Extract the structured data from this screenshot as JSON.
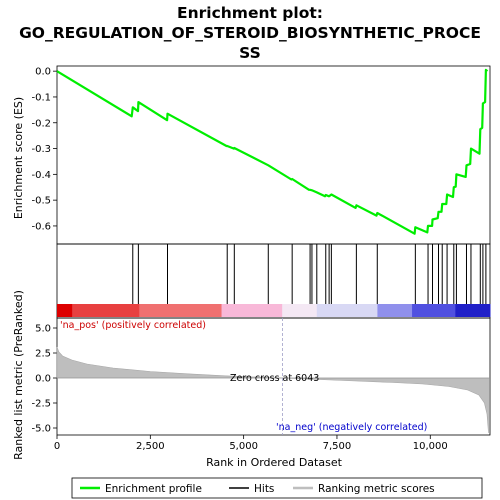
{
  "title_line1": "Enrichment plot:",
  "title_line2": "GO_REGULATION_OF_STEROID_BIOSYNTHETIC_PROCE",
  "title_line3": "SS",
  "colors": {
    "es_line": "#00ee00",
    "hits": "#000000",
    "metric_fill": "#bebebe",
    "pos_text": "#cc0000",
    "neg_text": "#0000cc",
    "zero_cross_line": "#a0a0c8"
  },
  "chart_data": {
    "type": "line",
    "x_axis": {
      "label": "Rank in Ordered Dataset",
      "min": 0,
      "max": 11600,
      "ticks": [
        0,
        2500,
        5000,
        7500,
        10000
      ],
      "tick_labels": [
        "0",
        "2,500",
        "5,000",
        "7,500",
        "10,000"
      ]
    },
    "es_panel": {
      "ylabel": "Enrichment score (ES)",
      "ylim": [
        -0.67,
        0.02
      ],
      "yticks": [
        0.0,
        -0.1,
        -0.2,
        -0.3,
        -0.4,
        -0.5,
        -0.6
      ],
      "ytick_labels": [
        "0.0",
        "-0.1",
        "-0.2",
        "-0.3",
        "-0.4",
        "-0.5",
        "-0.6"
      ],
      "series_name": "Enrichment profile",
      "points": [
        [
          0,
          0.0
        ],
        [
          2000,
          -0.175
        ],
        [
          2030,
          -0.14
        ],
        [
          2170,
          -0.155
        ],
        [
          2180,
          -0.12
        ],
        [
          2950,
          -0.19
        ],
        [
          2960,
          -0.165
        ],
        [
          4540,
          -0.29
        ],
        [
          4560,
          -0.29
        ],
        [
          4740,
          -0.3
        ],
        [
          4750,
          -0.298
        ],
        [
          5660,
          -0.365
        ],
        [
          6280,
          -0.42
        ],
        [
          6300,
          -0.418
        ],
        [
          6750,
          -0.46
        ],
        [
          6780,
          -0.46
        ],
        [
          6830,
          -0.462
        ],
        [
          6960,
          -0.47
        ],
        [
          7180,
          -0.485
        ],
        [
          7200,
          -0.48
        ],
        [
          7290,
          -0.485
        ],
        [
          7350,
          -0.478
        ],
        [
          8000,
          -0.53
        ],
        [
          8020,
          -0.52
        ],
        [
          8560,
          -0.56
        ],
        [
          8580,
          -0.55
        ],
        [
          9580,
          -0.63
        ],
        [
          9600,
          -0.605
        ],
        [
          9920,
          -0.625
        ],
        [
          9940,
          -0.6
        ],
        [
          10050,
          -0.6
        ],
        [
          10060,
          -0.575
        ],
        [
          10200,
          -0.57
        ],
        [
          10220,
          -0.545
        ],
        [
          10300,
          -0.545
        ],
        [
          10320,
          -0.515
        ],
        [
          10430,
          -0.515
        ],
        [
          10450,
          -0.478
        ],
        [
          10610,
          -0.488
        ],
        [
          10630,
          -0.45
        ],
        [
          10680,
          -0.448
        ],
        [
          10700,
          -0.4
        ],
        [
          10950,
          -0.41
        ],
        [
          10970,
          -0.365
        ],
        [
          11070,
          -0.36
        ],
        [
          11090,
          -0.3
        ],
        [
          11320,
          -0.32
        ],
        [
          11340,
          -0.225
        ],
        [
          11390,
          -0.22
        ],
        [
          11410,
          -0.125
        ],
        [
          11470,
          -0.12
        ],
        [
          11490,
          0.005
        ],
        [
          11530,
          0.0
        ]
      ],
      "hits": [
        2030,
        2180,
        2960,
        4560,
        4750,
        5660,
        6300,
        6780,
        6830,
        6960,
        7200,
        7290,
        7350,
        8020,
        8580,
        9600,
        9940,
        10060,
        10220,
        10320,
        10450,
        10630,
        10700,
        10970,
        11090,
        11340,
        11410,
        11490
      ]
    },
    "metric_panel": {
      "ylabel": "Ranked list metric (PreRanked)",
      "ylim": [
        -5.7,
        6.0
      ],
      "yticks": [
        5.0,
        2.5,
        0.0,
        -2.5,
        -5.0
      ],
      "ytick_labels": [
        "5.0",
        "2.5",
        "0.0",
        "-2.5",
        "-5.0"
      ],
      "series_name": "Ranking metric scores",
      "points": [
        [
          0,
          3.1
        ],
        [
          50,
          2.6
        ],
        [
          150,
          2.2
        ],
        [
          400,
          1.8
        ],
        [
          800,
          1.4
        ],
        [
          1500,
          1.0
        ],
        [
          2500,
          0.65
        ],
        [
          3500,
          0.42
        ],
        [
          4500,
          0.22
        ],
        [
          5500,
          0.07
        ],
        [
          6043,
          0.0
        ],
        [
          7000,
          -0.15
        ],
        [
          8000,
          -0.3
        ],
        [
          9000,
          -0.45
        ],
        [
          9800,
          -0.6
        ],
        [
          10500,
          -0.85
        ],
        [
          11000,
          -1.2
        ],
        [
          11300,
          -1.7
        ],
        [
          11450,
          -2.5
        ],
        [
          11520,
          -3.6
        ],
        [
          11560,
          -5.5
        ]
      ],
      "zero_cross_rank": 6043,
      "zero_cross_label": "Zero cross at 6043",
      "pos_label": "'na_pos' (positively correlated)",
      "neg_label": "'na_neg' (negatively correlated)"
    },
    "legend": {
      "placement": "bottom",
      "entries": [
        "Enrichment profile",
        "Hits",
        "Ranking metric scores"
      ]
    }
  }
}
